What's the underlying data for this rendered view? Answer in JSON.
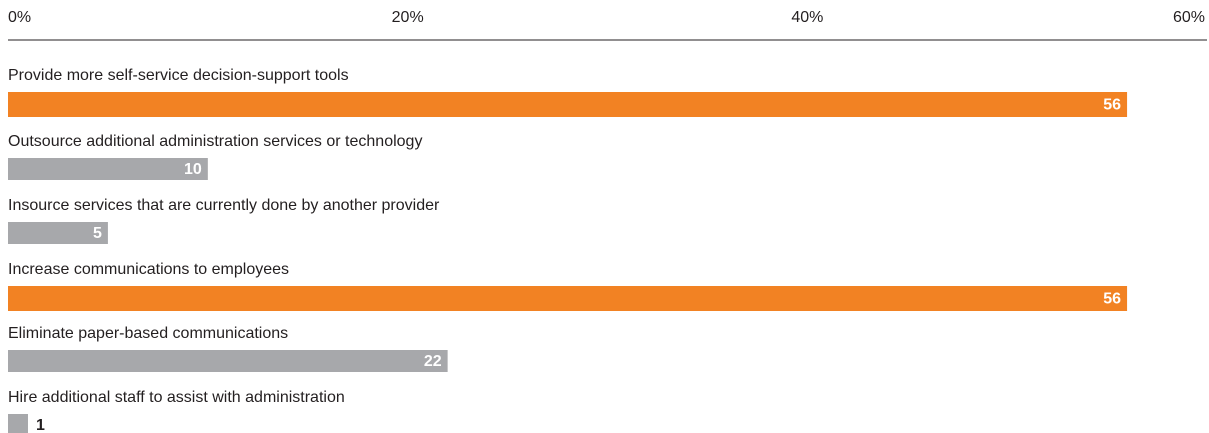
{
  "chart_data": {
    "type": "bar",
    "orientation": "horizontal",
    "categories": [
      "Provide more self-service decision-support tools",
      "Outsource additional administration services or technology",
      "Insource services that are currently done by another provider",
      "Increase communications to employees",
      "Eliminate paper-based communications",
      "Hire additional staff to assist with administration"
    ],
    "values": [
      56,
      10,
      5,
      56,
      22,
      1
    ],
    "colors": [
      "#f28223",
      "#a7a8ab",
      "#a7a8ab",
      "#f28223",
      "#a7a8ab",
      "#a7a8ab"
    ],
    "xlim": [
      0,
      60
    ],
    "xticks": [
      {
        "value": 0,
        "label": "0%"
      },
      {
        "value": 20,
        "label": "20%"
      },
      {
        "value": 40,
        "label": "40%"
      },
      {
        "value": 60,
        "label": "60%"
      }
    ]
  }
}
